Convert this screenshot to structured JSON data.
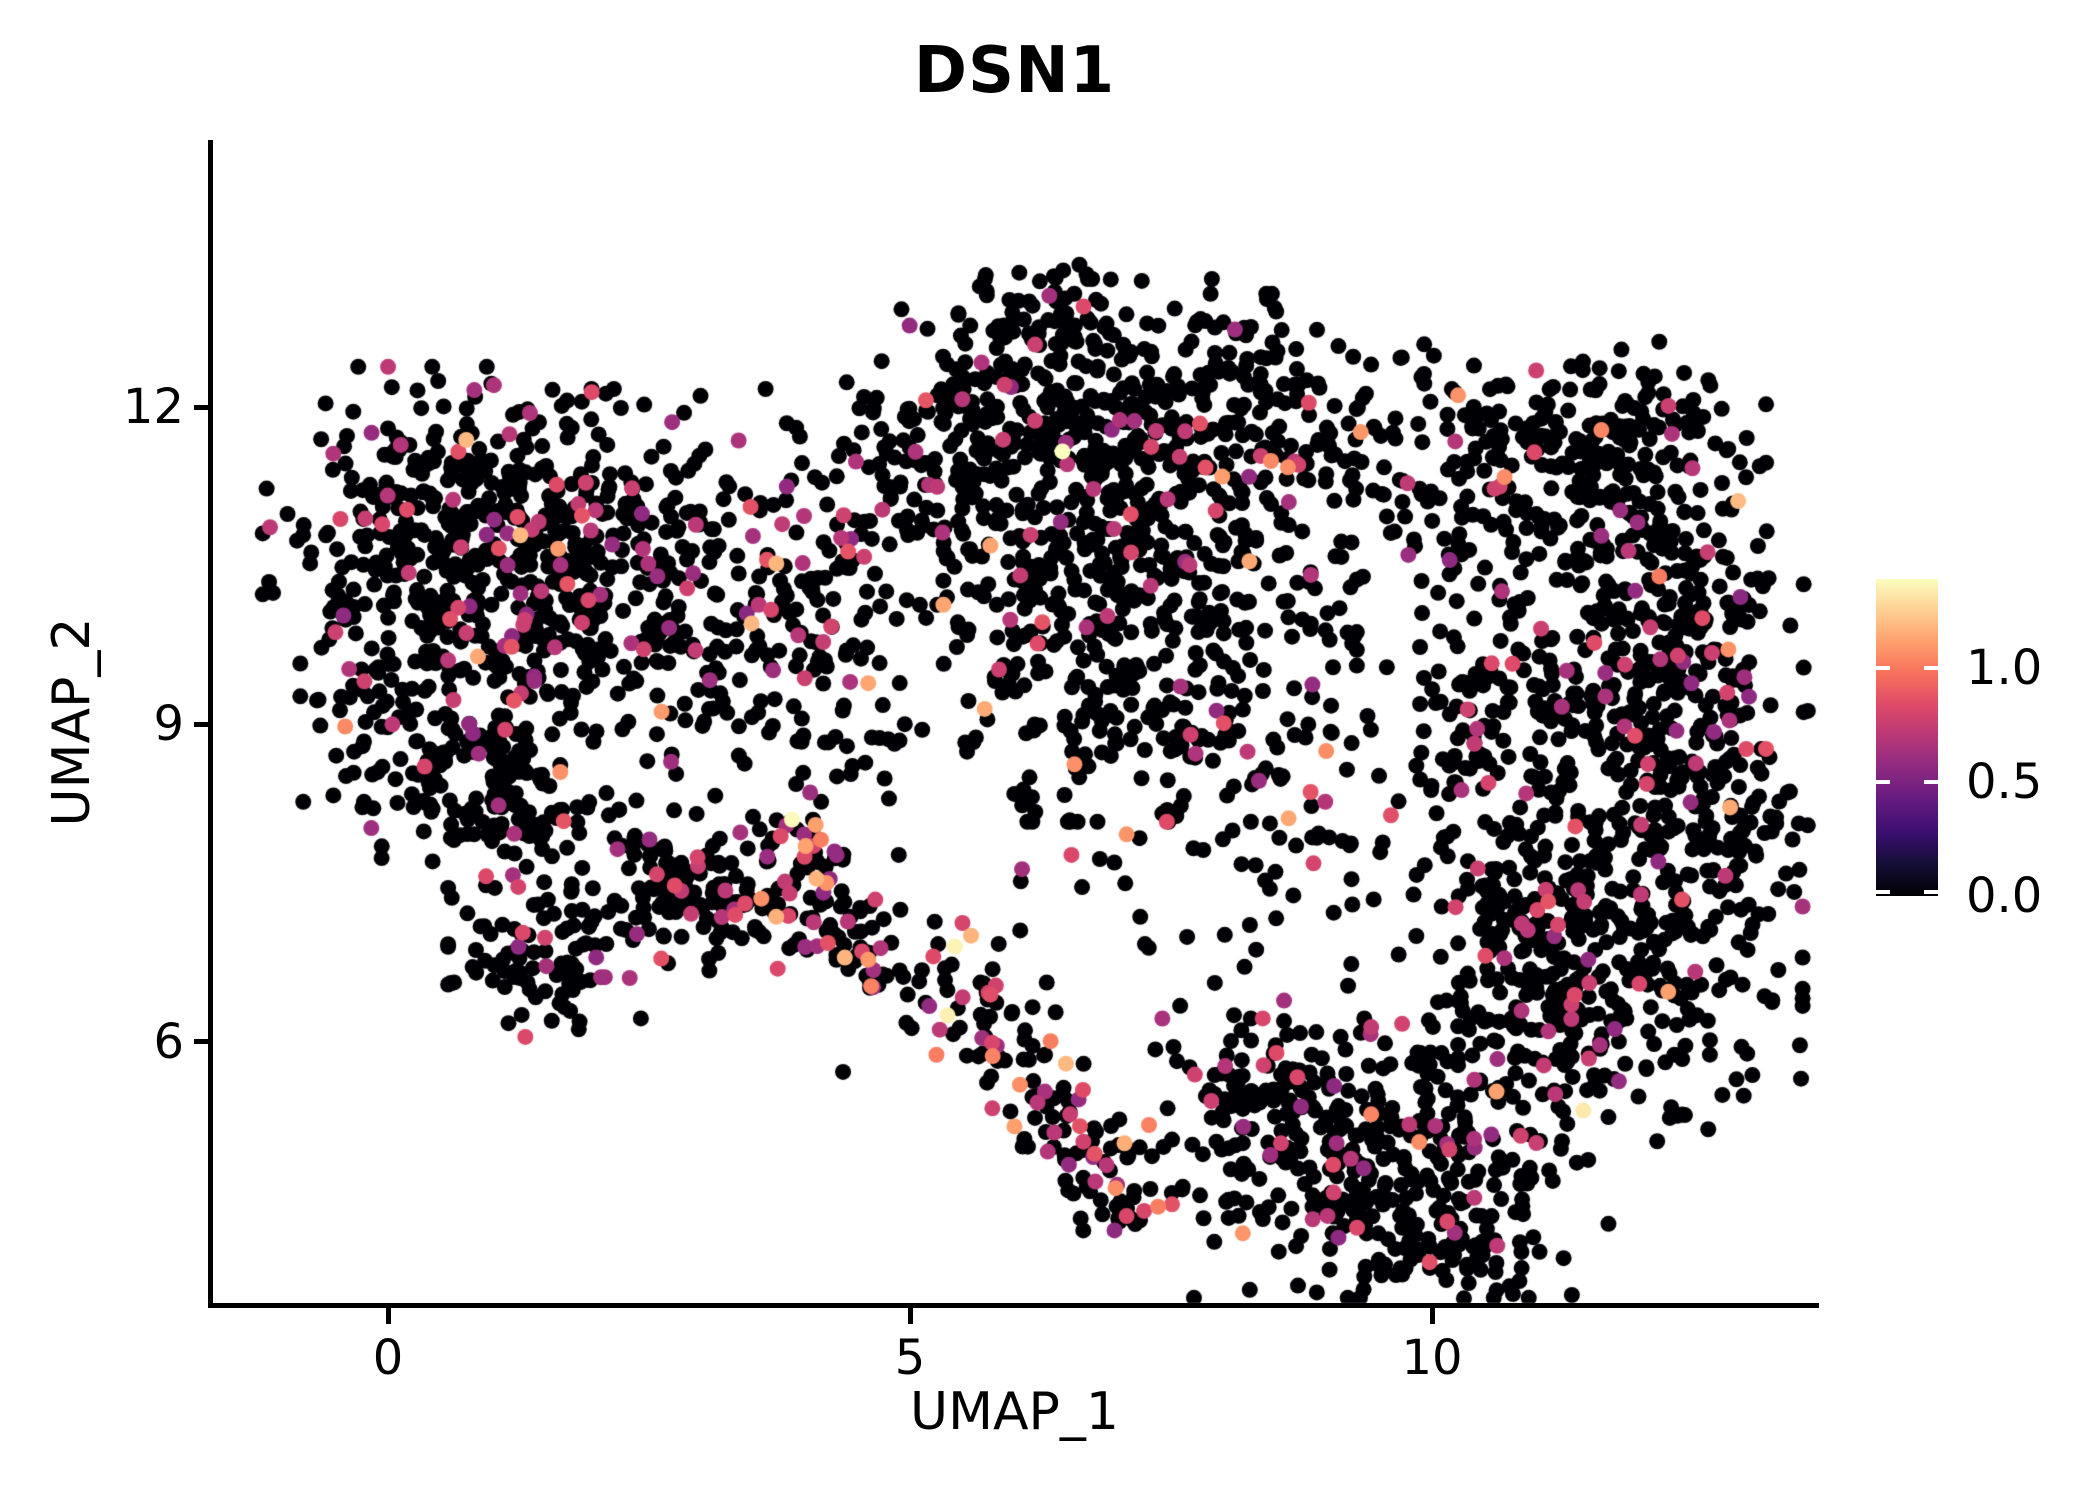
{
  "chart_data": {
    "type": "scatter",
    "title": "DSN1",
    "xlabel": "UMAP_1",
    "ylabel": "UMAP_2",
    "x_ticks": [
      {
        "value": 0,
        "label": "0"
      },
      {
        "value": 5,
        "label": "5"
      },
      {
        "value": 10,
        "label": "10"
      }
    ],
    "y_ticks": [
      {
        "value": 12,
        "label": "12"
      },
      {
        "value": 9,
        "label": "9"
      },
      {
        "value": 6,
        "label": "6"
      }
    ],
    "xlim": [
      -1.7,
      13.7
    ],
    "ylim": [
      3.5,
      14.5
    ],
    "grid": false,
    "background_color": "#ffffff",
    "axis_color": "#000000",
    "point_radius_px": 8,
    "seed": 42,
    "colorbar": {
      "position": "right",
      "vmin": 0.0,
      "vmax": 1.39,
      "ticks": [
        {
          "value": 1.0,
          "label": "1.0"
        },
        {
          "value": 0.5,
          "label": "0.5"
        },
        {
          "value": 0.0,
          "label": "0.0"
        }
      ],
      "palette_name": "magma",
      "palette_stops": [
        [
          0.0,
          "#000004"
        ],
        [
          0.1,
          "#140e36"
        ],
        [
          0.2,
          "#3b0f70"
        ],
        [
          0.3,
          "#641a80"
        ],
        [
          0.4,
          "#8c2981"
        ],
        [
          0.5,
          "#b73779"
        ],
        [
          0.6,
          "#de4968"
        ],
        [
          0.7,
          "#f7705c"
        ],
        [
          0.8,
          "#fe9f6d"
        ],
        [
          0.9,
          "#fecf92"
        ],
        [
          1.0,
          "#fcfdbf"
        ]
      ]
    },
    "expression_levels": {
      "zero_value": 0.0,
      "mid_range": [
        0.55,
        0.88
      ],
      "high_range": [
        1.0,
        1.2
      ]
    },
    "clusters": [
      {
        "name": "left-top-a",
        "shape": "gauss",
        "cx": 0.45,
        "cy": 10.95,
        "sx": 0.75,
        "sy": 0.65,
        "n": 250,
        "mid": 0.09,
        "high": 0.012
      },
      {
        "name": "left-top-b",
        "shape": "gauss",
        "cx": 1.95,
        "cy": 10.85,
        "sx": 0.85,
        "sy": 0.6,
        "n": 240,
        "mid": 0.1,
        "high": 0.012
      },
      {
        "name": "left-mid",
        "shape": "gauss",
        "cx": 1.25,
        "cy": 9.75,
        "sx": 0.95,
        "sy": 0.55,
        "n": 210,
        "mid": 0.13,
        "high": 0.008
      },
      {
        "name": "left-lower-ring",
        "shape": "ring",
        "cx": 0.85,
        "cy": 8.45,
        "r1": 0.22,
        "r2": 0.58,
        "n": 90,
        "mid": 0.07,
        "high": 0
      },
      {
        "name": "left-lower",
        "shape": "gauss",
        "cx": 1.15,
        "cy": 8.0,
        "sx": 0.55,
        "sy": 0.38,
        "n": 70,
        "mid": 0.08,
        "high": 0.005
      },
      {
        "name": "left-spur",
        "shape": "gauss",
        "cx": -0.15,
        "cy": 8.9,
        "sx": 0.35,
        "sy": 0.55,
        "n": 45,
        "mid": 0.05,
        "high": 0
      },
      {
        "name": "left-bottom-clump",
        "shape": "gauss",
        "cx": 1.5,
        "cy": 6.75,
        "sx": 0.42,
        "sy": 0.32,
        "n": 90,
        "mid": 0.12,
        "high": 0
      },
      {
        "name": "left-clump-2",
        "shape": "gauss",
        "cx": 2.75,
        "cy": 7.4,
        "sx": 0.45,
        "sy": 0.4,
        "n": 90,
        "mid": 0.1,
        "high": 0
      },
      {
        "name": "bridge-left",
        "shape": "gauss",
        "cx": 3.3,
        "cy": 9.35,
        "sx": 0.75,
        "sy": 0.65,
        "n": 100,
        "mid": 0.1,
        "high": 0.01
      },
      {
        "name": "bridge-upper",
        "shape": "gauss",
        "cx": 4.35,
        "cy": 10.15,
        "sx": 0.55,
        "sy": 0.6,
        "n": 70,
        "mid": 0.08,
        "high": 0
      },
      {
        "name": "top-a",
        "shape": "gauss",
        "cx": 5.5,
        "cy": 11.45,
        "sx": 0.75,
        "sy": 0.6,
        "n": 220,
        "mid": 0.06,
        "high": 0.01
      },
      {
        "name": "top-b",
        "shape": "gauss",
        "cx": 6.6,
        "cy": 12.0,
        "sx": 0.8,
        "sy": 0.55,
        "n": 220,
        "mid": 0.05,
        "high": 0.008
      },
      {
        "name": "top-c",
        "shape": "gauss",
        "cx": 7.4,
        "cy": 11.0,
        "sx": 0.6,
        "sy": 0.55,
        "n": 130,
        "mid": 0.07,
        "high": 0.01
      },
      {
        "name": "top-spur",
        "shape": "gauss",
        "cx": 6.2,
        "cy": 12.9,
        "sx": 0.45,
        "sy": 0.28,
        "n": 50,
        "mid": 0.04,
        "high": 0
      },
      {
        "name": "mid-a",
        "shape": "gauss",
        "cx": 7.3,
        "cy": 9.4,
        "sx": 0.9,
        "sy": 0.6,
        "n": 230,
        "mid": 0.08,
        "high": 0.008
      },
      {
        "name": "mid-b",
        "shape": "gauss",
        "cx": 6.35,
        "cy": 10.3,
        "sx": 0.45,
        "sy": 0.4,
        "n": 60,
        "mid": 0.08,
        "high": 0
      },
      {
        "name": "valley-upper",
        "shape": "gauss",
        "cx": 8.7,
        "cy": 11.3,
        "sx": 0.8,
        "sy": 0.8,
        "n": 110,
        "mid": 0.06,
        "high": 0.02
      },
      {
        "name": "valley-top-clump",
        "shape": "gauss",
        "cx": 8.3,
        "cy": 12.3,
        "sx": 0.45,
        "sy": 0.35,
        "n": 45,
        "mid": 0.05,
        "high": 0
      },
      {
        "name": "valley-mid",
        "shape": "gauss",
        "cx": 8.2,
        "cy": 8.2,
        "sx": 1.2,
        "sy": 0.9,
        "n": 75,
        "mid": 0.08,
        "high": 0.02
      },
      {
        "name": "valley-scatter",
        "shape": "box",
        "x1": 4.2,
        "y1": 5.6,
        "x2": 9.8,
        "y2": 9.6,
        "n": 55,
        "mid": 0.08,
        "high": 0.02
      },
      {
        "name": "small-clump",
        "shape": "gauss",
        "cx": 10.85,
        "cy": 11.9,
        "sx": 0.3,
        "sy": 0.25,
        "n": 40,
        "mid": 0.08,
        "high": 0
      },
      {
        "name": "bridge-right",
        "shape": "gauss",
        "cx": 9.9,
        "cy": 11.55,
        "sx": 0.5,
        "sy": 0.45,
        "n": 45,
        "mid": 0.05,
        "high": 0.02
      },
      {
        "name": "right-top-fringe",
        "shape": "gauss",
        "cx": 11.9,
        "cy": 11.95,
        "sx": 0.5,
        "sy": 0.35,
        "n": 70,
        "mid": 0.06,
        "high": 0
      },
      {
        "name": "right-top",
        "shape": "gauss",
        "cx": 11.55,
        "cy": 11.1,
        "sx": 0.75,
        "sy": 0.5,
        "n": 150,
        "mid": 0.07,
        "high": 0.005
      },
      {
        "name": "right-upper",
        "shape": "gauss",
        "cx": 12.35,
        "cy": 9.9,
        "sx": 0.55,
        "sy": 0.7,
        "n": 190,
        "mid": 0.08,
        "high": 0.005
      },
      {
        "name": "right-mid",
        "shape": "gauss",
        "cx": 12.5,
        "cy": 8.3,
        "sx": 0.5,
        "sy": 0.8,
        "n": 200,
        "mid": 0.08,
        "high": 0.005
      },
      {
        "name": "right-bottom",
        "shape": "gauss",
        "cx": 11.9,
        "cy": 6.6,
        "sx": 0.75,
        "sy": 0.7,
        "n": 220,
        "mid": 0.08,
        "high": 0.008
      },
      {
        "name": "right-inner-left",
        "shape": "gauss",
        "cx": 10.7,
        "cy": 9.0,
        "sx": 0.45,
        "sy": 0.85,
        "n": 130,
        "mid": 0.08,
        "high": 0.005
      },
      {
        "name": "right-inner-lower",
        "shape": "gauss",
        "cx": 10.95,
        "cy": 7.4,
        "sx": 0.5,
        "sy": 0.55,
        "n": 120,
        "mid": 0.09,
        "high": 0.008
      },
      {
        "name": "right-inner-sparse",
        "shape": "gauss",
        "cx": 11.5,
        "cy": 9.1,
        "sx": 0.5,
        "sy": 0.5,
        "n": 40,
        "mid": 0.08,
        "high": 0
      },
      {
        "name": "bottomright-main",
        "shape": "gauss",
        "cx": 9.6,
        "cy": 4.9,
        "sx": 0.95,
        "sy": 0.6,
        "n": 300,
        "mid": 0.08,
        "high": 0.01
      },
      {
        "name": "bottomright-left",
        "shape": "gauss",
        "cx": 8.45,
        "cy": 5.4,
        "sx": 0.5,
        "sy": 0.45,
        "n": 90,
        "mid": 0.07,
        "high": 0.01
      },
      {
        "name": "bottomright-tail",
        "shape": "gauss",
        "cx": 10.3,
        "cy": 4.05,
        "sx": 0.5,
        "sy": 0.28,
        "n": 60,
        "mid": 0.06,
        "high": 0
      },
      {
        "name": "bottomright-link",
        "shape": "gauss",
        "cx": 10.8,
        "cy": 5.8,
        "sx": 0.45,
        "sy": 0.45,
        "n": 80,
        "mid": 0.1,
        "high": 0.01
      },
      {
        "name": "stream-left",
        "shape": "line",
        "x1": 2.45,
        "y1": 7.55,
        "x2": 4.25,
        "y2": 7.05,
        "sp": 0.22,
        "n": 60,
        "mid": 0.15,
        "high": 0.02
      },
      {
        "name": "stream-diag",
        "shape": "line",
        "x1": 3.7,
        "y1": 8.15,
        "x2": 4.75,
        "y2": 6.55,
        "sp": 0.2,
        "n": 85,
        "mid": 0.3,
        "high": 0.08
      },
      {
        "name": "stream-bottom",
        "shape": "line",
        "x1": 5.15,
        "y1": 6.85,
        "x2": 7.3,
        "y2": 4.35,
        "sp": 0.26,
        "n": 150,
        "mid": 0.2,
        "high": 0.05
      }
    ],
    "highlight_points": [
      {
        "x": 3.87,
        "y": 8.1,
        "value": 1.38
      },
      {
        "x": 5.36,
        "y": 6.25,
        "value": 1.35
      },
      {
        "x": 6.46,
        "y": 11.58,
        "value": 1.39
      },
      {
        "x": 11.45,
        "y": 5.35,
        "value": 1.33
      },
      {
        "x": 5.43,
        "y": 6.9,
        "value": 1.36
      },
      {
        "x": 10.25,
        "y": 12.11,
        "value": 1.08
      },
      {
        "x": 2.62,
        "y": 9.12,
        "value": 1.1
      },
      {
        "x": -0.41,
        "y": 8.98,
        "value": 1.05
      },
      {
        "x": 5.77,
        "y": 10.69,
        "value": 1.12
      },
      {
        "x": 1.63,
        "y": 10.66,
        "value": 1.1
      },
      {
        "x": 1.65,
        "y": 8.55,
        "value": 1.07
      },
      {
        "x": 4.0,
        "y": 7.85,
        "value": 1.12
      },
      {
        "x": 4.2,
        "y": 7.5,
        "value": 1.08
      }
    ]
  }
}
